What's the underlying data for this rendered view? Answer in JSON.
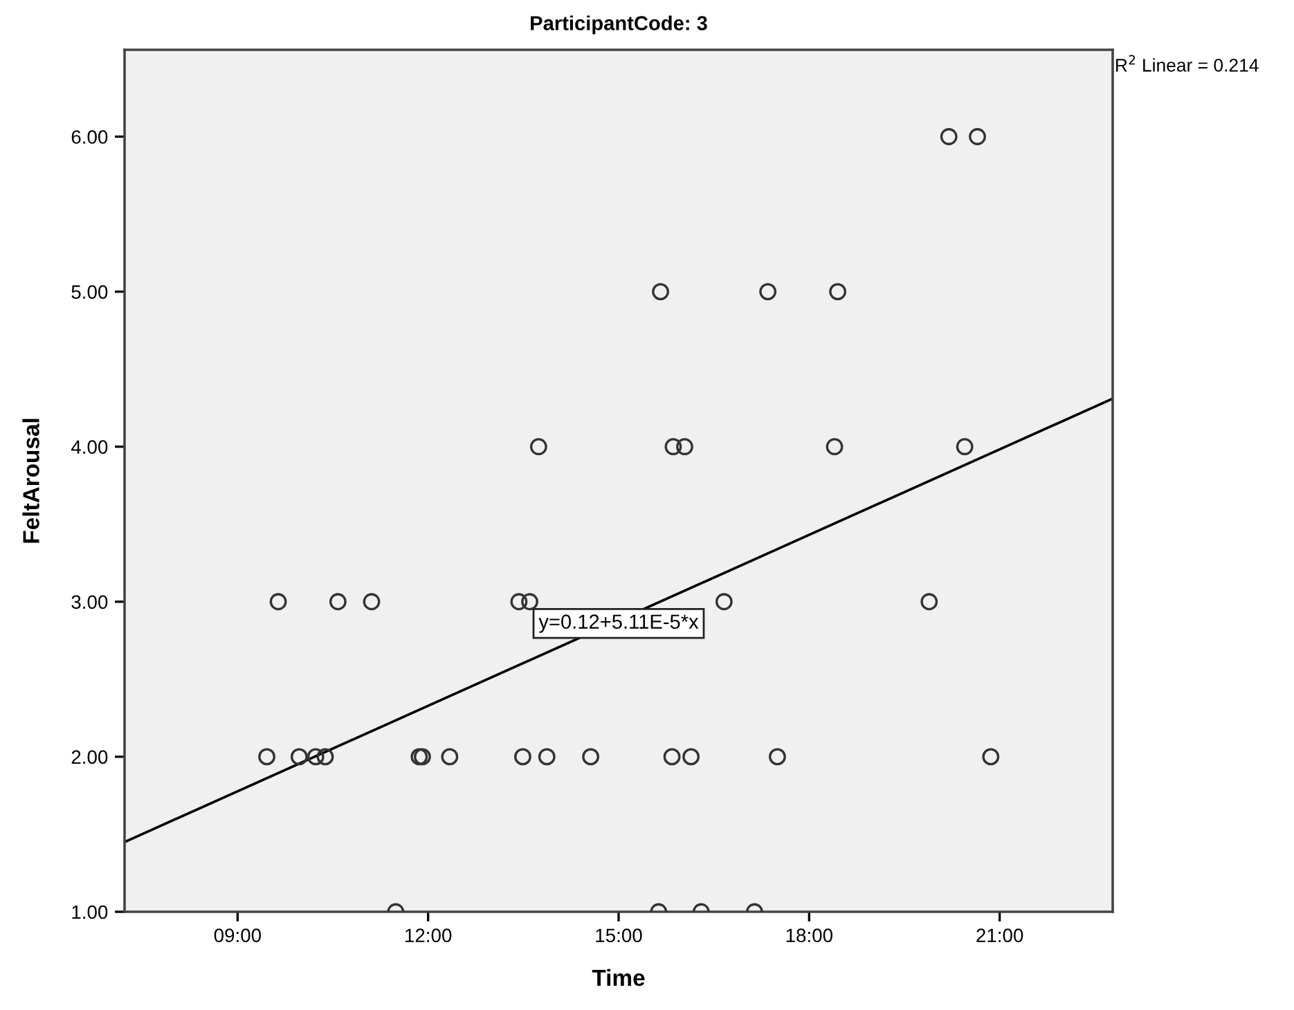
{
  "chart_data": {
    "type": "scatter",
    "title": "ParticipantCode: 3",
    "xlabel": "Time",
    "ylabel": "FeltArousal",
    "xlim": [
      7.22,
      22.78
    ],
    "ylim": [
      1,
      6.56
    ],
    "xticks": [
      {
        "value": 9,
        "label": "09:00"
      },
      {
        "value": 12,
        "label": "12:00"
      },
      {
        "value": 15,
        "label": "15:00"
      },
      {
        "value": 18,
        "label": "18:00"
      },
      {
        "value": 21,
        "label": "21:00"
      }
    ],
    "yticks": [
      {
        "value": 1,
        "label": "1.00"
      },
      {
        "value": 2,
        "label": "2.00"
      },
      {
        "value": 3,
        "label": "3.00"
      },
      {
        "value": 4,
        "label": "4.00"
      },
      {
        "value": 5,
        "label": "5.00"
      },
      {
        "value": 6,
        "label": "6.00"
      }
    ],
    "grid": false,
    "marker": "circle",
    "series": [
      {
        "color": "#333333",
        "x": [
          20.2,
          20.65,
          15.66,
          17.35,
          18.45,
          13.74,
          15.86,
          16.04,
          18.4,
          20.45,
          9.64,
          10.58,
          11.11,
          13.43,
          13.6,
          16.66,
          19.89,
          9.46,
          9.97,
          10.23,
          10.38,
          11.86,
          11.91,
          12.34,
          13.49,
          13.87,
          14.56,
          15.84,
          16.14,
          17.5,
          20.86,
          11.49,
          15.63,
          16.3,
          17.14
        ],
        "values": [
          6,
          6,
          5,
          5,
          5,
          4,
          4,
          4,
          4,
          4,
          3,
          3,
          3,
          3,
          3,
          3,
          3,
          2,
          2,
          2,
          2,
          2,
          2,
          2,
          2,
          2,
          2,
          2,
          2,
          2,
          2,
          1,
          1,
          1,
          1
        ]
      },
      {
        "type": "line",
        "color": "#000000",
        "marker": "none",
        "line_style": "solid",
        "x": [
          7.22,
          22.78
        ],
        "values": [
          1.45,
          4.31
        ]
      }
    ],
    "annotations": [
      {
        "text": "y=0.12+5.11E-5*x",
        "x": 15.0,
        "y": 2.86
      },
      "R$^{2}$ Linear = 0.214"
    ]
  }
}
